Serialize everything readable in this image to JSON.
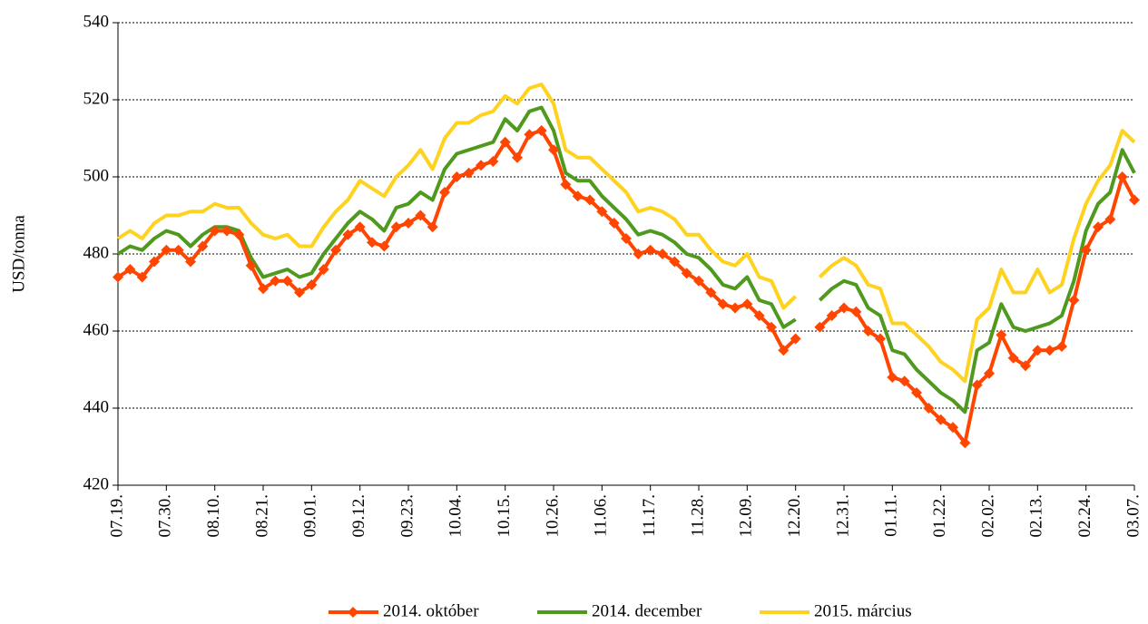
{
  "chart_data": {
    "type": "line",
    "y_label": "USD/tonna",
    "categories": [
      "07.19.",
      null,
      null,
      null,
      "07.30.",
      null,
      null,
      null,
      "08.10.",
      null,
      null,
      null,
      "08.21.",
      null,
      null,
      null,
      "09.01.",
      null,
      null,
      null,
      "09.12.",
      null,
      null,
      null,
      "09.23.",
      null,
      null,
      null,
      "10.04.",
      null,
      null,
      null,
      "10.15.",
      null,
      null,
      null,
      "10.26.",
      null,
      null,
      null,
      "11.06.",
      null,
      null,
      null,
      "11.17.",
      null,
      null,
      null,
      "11.28.",
      null,
      null,
      null,
      "12.09.",
      null,
      null,
      null,
      "12.20.",
      null,
      null,
      null,
      "12.31.",
      null,
      null,
      null,
      "01.11.",
      null,
      null,
      null,
      "01.22.",
      null,
      null,
      null,
      "02.02.",
      null,
      null,
      null,
      "02.13.",
      null,
      null,
      null,
      "02.24.",
      null,
      null,
      null,
      "03.07."
    ],
    "series": [
      {
        "name": "2014. október",
        "color": "#ff4500",
        "marker": "diamond",
        "values": [
          474,
          476,
          474,
          478,
          481,
          481,
          478,
          482,
          486,
          486,
          485,
          477,
          471,
          473,
          473,
          470,
          472,
          476,
          481,
          485,
          487,
          483,
          482,
          487,
          488,
          490,
          487,
          496,
          500,
          501,
          503,
          504,
          509,
          505,
          511,
          512,
          507,
          498,
          495,
          494,
          491,
          488,
          484,
          480,
          481,
          480,
          478,
          475,
          473,
          470,
          467,
          466,
          467,
          464,
          461,
          455,
          458,
          null,
          461,
          464,
          466,
          465,
          460,
          458,
          448,
          447,
          444,
          440,
          437,
          435,
          431,
          446,
          449,
          459,
          453,
          451,
          455,
          455,
          456,
          468,
          481,
          487,
          489,
          500,
          494
        ]
      },
      {
        "name": "2014. december",
        "color": "#4f9a1e",
        "values": [
          480,
          482,
          481,
          484,
          486,
          485,
          482,
          485,
          487,
          487,
          486,
          479,
          474,
          475,
          476,
          474,
          475,
          480,
          484,
          488,
          491,
          489,
          486,
          492,
          493,
          496,
          494,
          502,
          506,
          507,
          508,
          509,
          515,
          512,
          517,
          518,
          512,
          501,
          499,
          499,
          495,
          492,
          489,
          485,
          486,
          485,
          483,
          480,
          479,
          476,
          472,
          471,
          474,
          468,
          467,
          461,
          463,
          null,
          468,
          471,
          473,
          472,
          466,
          464,
          455,
          454,
          450,
          447,
          444,
          442,
          439,
          455,
          457,
          467,
          461,
          460,
          461,
          462,
          464,
          473,
          486,
          493,
          496,
          507,
          501
        ]
      },
      {
        "name": "2015. március",
        "color": "#ffd21f",
        "values": [
          484,
          486,
          484,
          488,
          490,
          490,
          491,
          491,
          493,
          492,
          492,
          488,
          485,
          484,
          485,
          482,
          482,
          487,
          491,
          494,
          499,
          497,
          495,
          500,
          503,
          507,
          502,
          510,
          514,
          514,
          516,
          517,
          521,
          519,
          523,
          524,
          519,
          507,
          505,
          505,
          502,
          499,
          496,
          491,
          492,
          491,
          489,
          485,
          485,
          481,
          478,
          477,
          480,
          474,
          473,
          466,
          469,
          null,
          474,
          477,
          479,
          477,
          472,
          471,
          462,
          462,
          459,
          456,
          452,
          450,
          447,
          463,
          466,
          476,
          470,
          470,
          476,
          470,
          472,
          484,
          493,
          499,
          503,
          512,
          509
        ]
      }
    ],
    "ylim": [
      420,
      540
    ],
    "yticks": [
      420,
      440,
      460,
      480,
      500,
      520,
      540
    ],
    "grid": true,
    "legend": "bottom"
  }
}
